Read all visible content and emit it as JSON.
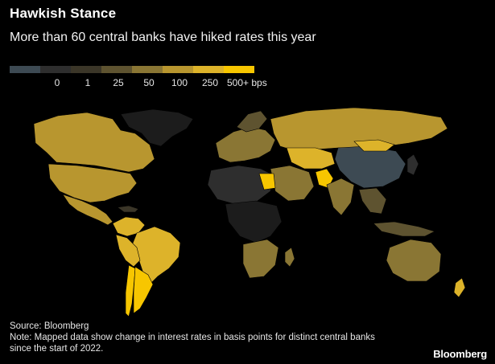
{
  "title": "Hawkish Stance",
  "subtitle": "More than 60 central banks have hiked rates this year",
  "legend": {
    "swatches": [
      {
        "color": "#3d4a53",
        "label": ""
      },
      {
        "color": "#2e2e2e",
        "label": "0"
      },
      {
        "color": "#3b3628",
        "label": "1"
      },
      {
        "color": "#5e5330",
        "label": "25"
      },
      {
        "color": "#8a7634",
        "label": "50"
      },
      {
        "color": "#b8962f",
        "label": "100"
      },
      {
        "color": "#ddb32a",
        "label": "250"
      },
      {
        "color": "#f7c600",
        "label": "500+ bps"
      }
    ]
  },
  "source": "Source: Bloomberg",
  "note": "Note: Mapped data show change in interest rates in basis points for distinct central banks since the start of 2022.",
  "brand": "Bloomberg",
  "colors": {
    "no_data": "#1c1c1c",
    "border": "#000000"
  }
}
